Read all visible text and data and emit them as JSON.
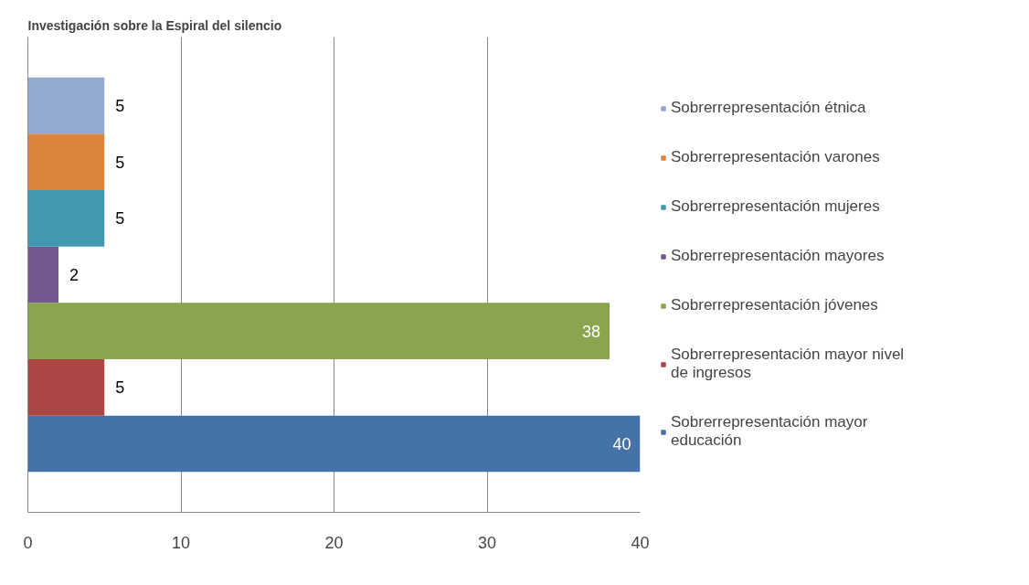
{
  "chart_data": {
    "type": "bar",
    "orientation": "horizontal",
    "title": "Investigación sobre la Espiral del silencio",
    "categories": [
      null
    ],
    "series": [
      {
        "name": "Sobrerrepresentación mayor educación",
        "color": "#4572a7",
        "values": [
          40
        ]
      },
      {
        "name": "Sobrerrepresentación mayor nivel de ingresos",
        "color": "#aa4643",
        "values": [
          5
        ]
      },
      {
        "name": "Sobrerrepresentación jóvenes",
        "color": "#89a54e",
        "values": [
          38
        ]
      },
      {
        "name": "Sobrerrepresentación mayores",
        "color": "#71588f",
        "values": [
          2
        ]
      },
      {
        "name": "Sobrerrepresentación mujeres",
        "color": "#4198af",
        "values": [
          5
        ]
      },
      {
        "name": "Sobrerrepresentación varones",
        "color": "#db843d",
        "values": [
          5
        ]
      },
      {
        "name": "Sobrerrepresentación étnica",
        "color": "#93a9cf",
        "values": [
          5
        ]
      }
    ],
    "xlim": [
      0,
      40
    ],
    "xticks": [
      0,
      10,
      20,
      30,
      40
    ],
    "grid": "x",
    "legend": "right",
    "data_labels": true
  }
}
